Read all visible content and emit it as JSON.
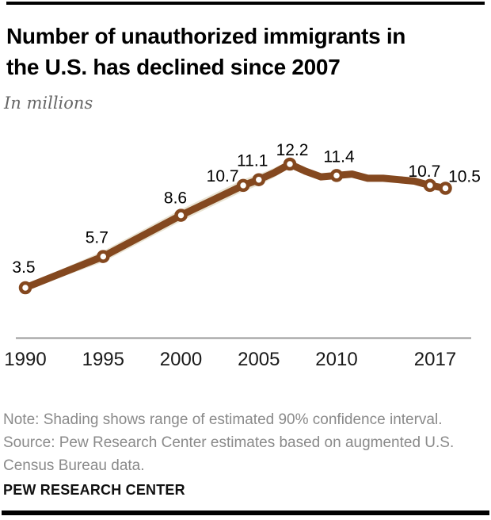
{
  "header": {
    "title_line1": "Number of unauthorized immigrants in",
    "title_line2": "the U.S. has declined since 2007",
    "subtitle": "In millions"
  },
  "footer": {
    "note_line1": "Note: Shading shows range of estimated 90% confidence interval.",
    "note_line2": "Source: Pew Research Center estimates based on augmented U.S.",
    "note_line3": "Census Bureau data.",
    "brand": "PEW RESEARCH CENTER"
  },
  "colors": {
    "line": "#84481f",
    "band": "#e9e3d2",
    "marker_fill": "#ffffff",
    "axis": "#999999",
    "tick_text": "#1a1a1a",
    "data_label": "#000000",
    "note_text": "#8a8a8a",
    "subtitle_text": "#666666",
    "bar": "#000000"
  },
  "chart_data": {
    "type": "line",
    "title": "Number of unauthorized immigrants in the U.S. has declined since 2007",
    "ylabel": "In millions",
    "xlabel": "",
    "xlim": [
      1990,
      2017
    ],
    "grid": false,
    "annotation": "Shading shows range of estimated 90% confidence interval",
    "x": [
      1990,
      1995,
      2000,
      2004,
      2005,
      2006,
      2007,
      2008,
      2009,
      2010,
      2011,
      2012,
      2013,
      2014,
      2015,
      2016,
      2017
    ],
    "series": [
      {
        "name": "Unauthorized immigrants (millions)",
        "values": [
          3.5,
          5.7,
          8.6,
          10.7,
          11.1,
          11.6,
          12.2,
          11.7,
          11.3,
          11.4,
          11.5,
          11.2,
          11.2,
          11.1,
          11.0,
          10.7,
          10.5
        ]
      }
    ],
    "labeled_points": [
      {
        "year": 1990,
        "value": 3.5,
        "label": "3.5"
      },
      {
        "year": 1995,
        "value": 5.7,
        "label": "5.7"
      },
      {
        "year": 2000,
        "value": 8.6,
        "label": "8.6"
      },
      {
        "year": 2004,
        "value": 10.7,
        "label": "10.7"
      },
      {
        "year": 2005,
        "value": 11.1,
        "label": "11.1"
      },
      {
        "year": 2007,
        "value": 12.2,
        "label": "12.2"
      },
      {
        "year": 2010,
        "value": 11.4,
        "label": "11.4"
      },
      {
        "year": 2016,
        "value": 10.7,
        "label": "10.7"
      },
      {
        "year": 2017,
        "value": 10.5,
        "label": "10.5"
      }
    ],
    "x_ticks": [
      "1990",
      "1995",
      "2000",
      "2005",
      "2010",
      "2017"
    ],
    "band_years": [
      1990,
      1995,
      2000,
      2004,
      2005,
      2006,
      2007
    ]
  }
}
